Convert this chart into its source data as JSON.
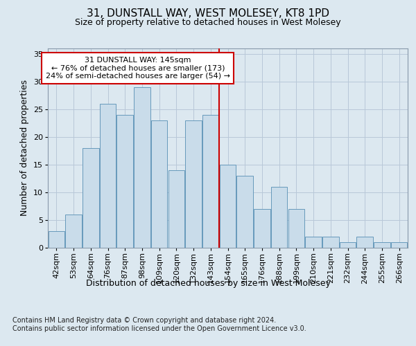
{
  "title": "31, DUNSTALL WAY, WEST MOLESEY, KT8 1PD",
  "subtitle": "Size of property relative to detached houses in West Molesey",
  "xlabel": "Distribution of detached houses by size in West Molesey",
  "ylabel": "Number of detached properties",
  "footer_line1": "Contains HM Land Registry data © Crown copyright and database right 2024.",
  "footer_line2": "Contains public sector information licensed under the Open Government Licence v3.0.",
  "bar_labels": [
    "42sqm",
    "53sqm",
    "64sqm",
    "76sqm",
    "87sqm",
    "98sqm",
    "109sqm",
    "120sqm",
    "132sqm",
    "143sqm",
    "154sqm",
    "165sqm",
    "176sqm",
    "188sqm",
    "199sqm",
    "210sqm",
    "221sqm",
    "232sqm",
    "244sqm",
    "255sqm",
    "266sqm"
  ],
  "bar_values": [
    3,
    6,
    18,
    26,
    24,
    29,
    23,
    14,
    23,
    24,
    15,
    13,
    7,
    11,
    7,
    2,
    2,
    1,
    2,
    1,
    1
  ],
  "bar_color": "#c9dcea",
  "bar_edgecolor": "#6699bb",
  "property_label": "31 DUNSTALL WAY: 145sqm",
  "annotation_line1": "← 76% of detached houses are smaller (173)",
  "annotation_line2": "24% of semi-detached houses are larger (54) →",
  "vline_color": "#cc0000",
  "annotation_box_edgecolor": "#cc0000",
  "ylim": [
    0,
    36
  ],
  "yticks": [
    0,
    5,
    10,
    15,
    20,
    25,
    30,
    35
  ],
  "bg_color": "#dce8f0",
  "plot_bg_color": "#dce8f0",
  "grid_color": "#b8c8d8",
  "title_fontsize": 11,
  "subtitle_fontsize": 9,
  "axis_label_fontsize": 9,
  "tick_fontsize": 8,
  "footer_fontsize": 7,
  "annotation_fontsize": 8
}
